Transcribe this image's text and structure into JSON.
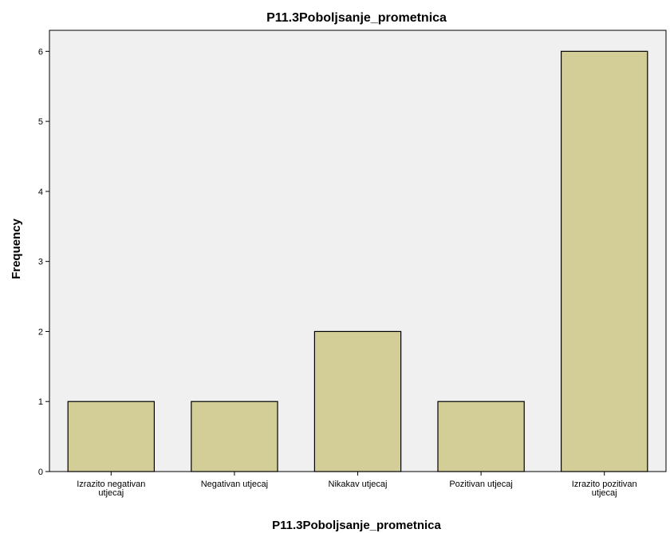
{
  "chart_data": {
    "type": "bar",
    "title": "P11.3Poboljsanje_prometnica",
    "xlabel": "P11.3Poboljsanje_prometnica",
    "ylabel": "Frequency",
    "categories": [
      [
        "Izrazito negativan",
        "utjecaj"
      ],
      [
        "Negativan utjecaj"
      ],
      [
        "Nikakav utjecaj"
      ],
      [
        "Pozitivan utjecaj"
      ],
      [
        "Izrazito pozitivan",
        "utjecaj"
      ]
    ],
    "values": [
      1,
      1,
      2,
      1,
      6
    ],
    "ylim": [
      0,
      6.3
    ],
    "yticks": [
      0,
      1,
      2,
      3,
      4,
      5,
      6
    ],
    "grid": false,
    "colors": {
      "plot_background": "#f0f0f0",
      "bar_fill": "#d3ce97",
      "bar_stroke": "#000000",
      "axis": "#000000"
    }
  }
}
